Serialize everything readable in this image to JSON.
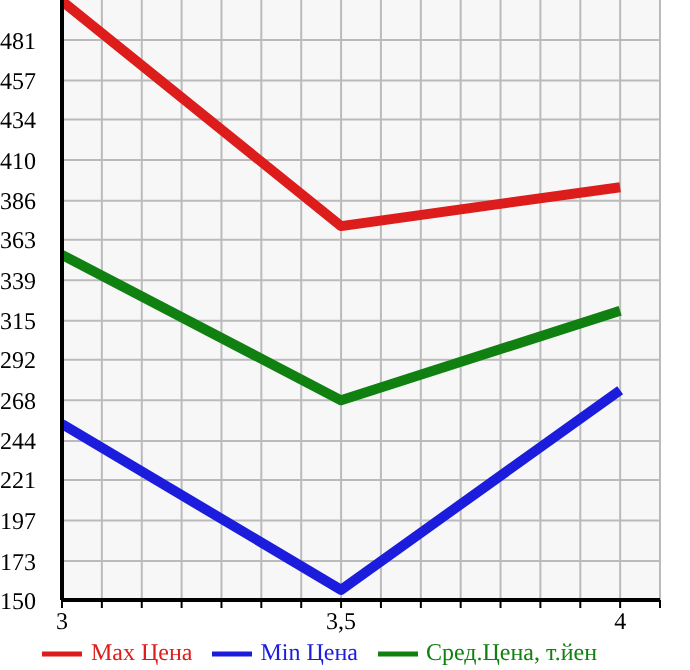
{
  "chart_data": {
    "type": "line",
    "x": [
      3,
      3.5,
      4
    ],
    "series": [
      {
        "name": "Max Цена",
        "color": "#dd1c1c",
        "values": [
          504,
          371,
          394
        ]
      },
      {
        "name": "Min Цена",
        "color": "#1c1cdd",
        "values": [
          254,
          156,
          274
        ]
      },
      {
        "name": "Сред.Цена, т.йен",
        "color": "#108010",
        "values": [
          354,
          268,
          321
        ]
      }
    ],
    "xlim": [
      3,
      4.0714
    ],
    "xticks": [
      3,
      {
        "value": 3.0714,
        "label": null
      },
      {
        "value": 3.1429,
        "label": null
      },
      {
        "value": 3.2143,
        "label": null
      },
      {
        "value": 3.2857,
        "label": null
      },
      {
        "value": 3.3571,
        "label": null
      },
      {
        "value": 3.4286,
        "label": null
      },
      {
        "value": 3.5,
        "label": "3,5"
      },
      {
        "value": 3.5714,
        "label": null
      },
      {
        "value": 3.6429,
        "label": null
      },
      {
        "value": 3.7143,
        "label": null
      },
      {
        "value": 3.7857,
        "label": null
      },
      {
        "value": 3.8571,
        "label": null
      },
      {
        "value": 3.9286,
        "label": null
      },
      4,
      {
        "value": 4.0714,
        "label": null
      }
    ],
    "ylim": [
      150,
      504.64
    ],
    "yticks": [
      150,
      173,
      197,
      221,
      244,
      268,
      292,
      315,
      339,
      363,
      386,
      410,
      434,
      457,
      481
    ],
    "grid": true,
    "legend": "bottom",
    "marker": "none",
    "line_style": "solid"
  }
}
